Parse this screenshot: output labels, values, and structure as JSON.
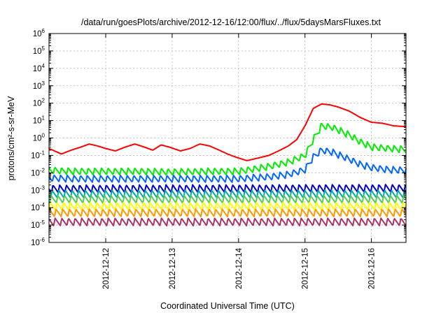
{
  "chart_data": {
    "type": "line",
    "title": "/data/run/goesPlots/archive/2012-12-16/12:00/flux/../flux/5daysMarsFluxes.txt",
    "xlabel": "Coordinated Universal Time (UTC)",
    "ylabel": "protons/cm²-s-sr-MeV",
    "yscale": "log",
    "ylim": [
      1e-06,
      1000000.0
    ],
    "y_ticks": [
      "10-6",
      "10-5",
      "10-4",
      "10-3",
      "10-2",
      "10-1",
      "100",
      "101",
      "102",
      "103",
      "104",
      "105",
      "106"
    ],
    "x_ticks": [
      "2012-12-12",
      "2012-12-13",
      "2012-12-14",
      "2012-12-15",
      "2012-12-16"
    ],
    "xlim": [
      "2012-12-11 03:30",
      "2012-12-16 12:30"
    ],
    "grid": true,
    "legend": "none",
    "series": [
      {
        "color": "#ff0000",
        "x": [
          "2012-12-11 03:30",
          "2012-12-11 08:00",
          "2012-12-11 11:30",
          "2012-12-11 15:00",
          "2012-12-11 18:00",
          "2012-12-11 21:00",
          "2012-12-12 00:00",
          "2012-12-12 03:30",
          "2012-12-12 07:00",
          "2012-12-12 10:30",
          "2012-12-12 14:00",
          "2012-12-12 17:00",
          "2012-12-12 20:00",
          "2012-12-12 23:00",
          "2012-12-13 03:00",
          "2012-12-13 06:30",
          "2012-12-13 10:00",
          "2012-12-13 13:30",
          "2012-12-13 17:00",
          "2012-12-13 20:00",
          "2012-12-13 23:00",
          "2012-12-14 03:00",
          "2012-12-14 07:00",
          "2012-12-14 11:00",
          "2012-12-14 15:00",
          "2012-12-14 18:00",
          "2012-12-14 21:00",
          "2012-12-15 00:00",
          "2012-12-15 03:00",
          "2012-12-15 06:00",
          "2012-12-15 09:00",
          "2012-12-15 12:00",
          "2012-12-15 16:00",
          "2012-12-15 20:00",
          "2012-12-16 00:00",
          "2012-12-16 04:00",
          "2012-12-16 08:00",
          "2012-12-16 12:30"
        ],
        "y": [
          0.25,
          0.12,
          0.2,
          0.3,
          0.45,
          0.35,
          0.25,
          0.18,
          0.3,
          0.45,
          0.3,
          0.2,
          0.4,
          0.3,
          0.18,
          0.25,
          0.45,
          0.35,
          0.2,
          0.12,
          0.08,
          0.05,
          0.07,
          0.1,
          0.2,
          0.35,
          0.8,
          5,
          50,
          90,
          80,
          60,
          35,
          15,
          8,
          7,
          5,
          4.5
        ]
      },
      {
        "color": "#00ee00",
        "x": [
          "2012-12-11 03:30",
          "2012-12-11 12:00",
          "2012-12-12 00:00",
          "2012-12-12 12:00",
          "2012-12-13 00:00",
          "2012-12-13 12:00",
          "2012-12-14 00:00",
          "2012-12-14 09:00",
          "2012-12-14 18:00",
          "2012-12-15 00:00",
          "2012-12-15 03:00",
          "2012-12-15 06:00",
          "2012-12-15 10:00",
          "2012-12-15 16:00",
          "2012-12-15 20:00",
          "2012-12-16 00:00",
          "2012-12-16 06:00",
          "2012-12-16 12:30"
        ],
        "y": [
          0.014,
          0.012,
          0.012,
          0.012,
          0.011,
          0.012,
          0.012,
          0.02,
          0.04,
          0.1,
          0.8,
          5,
          4,
          1.5,
          0.6,
          0.3,
          0.25,
          0.22
        ]
      },
      {
        "color": "#0066ff",
        "x": [
          "2012-12-11 03:30",
          "2012-12-11 12:00",
          "2012-12-12 00:00",
          "2012-12-12 12:00",
          "2012-12-13 00:00",
          "2012-12-13 12:00",
          "2012-12-14 00:00",
          "2012-12-14 12:00",
          "2012-12-14 18:00",
          "2012-12-15 00:00",
          "2012-12-15 03:00",
          "2012-12-15 06:00",
          "2012-12-15 10:00",
          "2012-12-15 16:00",
          "2012-12-15 20:00",
          "2012-12-16 00:00",
          "2012-12-16 06:00",
          "2012-12-16 12:30"
        ],
        "y": [
          0.005,
          0.0045,
          0.0045,
          0.0045,
          0.0045,
          0.0045,
          0.0045,
          0.006,
          0.008,
          0.015,
          0.08,
          0.2,
          0.15,
          0.06,
          0.03,
          0.02,
          0.015,
          0.014
        ]
      },
      {
        "color": "#0000cc",
        "x": [
          "2012-12-11 03:30",
          "2012-12-16 12:30"
        ],
        "y": [
          0.0012,
          0.0013
        ]
      },
      {
        "color": "#00aaaa",
        "x": [
          "2012-12-11 03:30",
          "2012-12-16 12:30"
        ],
        "y": [
          0.0006,
          0.0006
        ]
      },
      {
        "color": "#55cc55",
        "x": [
          "2012-12-11 03:30",
          "2012-12-16 12:30"
        ],
        "y": [
          0.0003,
          0.0003
        ]
      },
      {
        "color": "#ffff00",
        "x": [
          "2012-12-11 03:30",
          "2012-12-16 12:30"
        ],
        "y": [
          0.00012,
          0.00012
        ]
      },
      {
        "color": "#ff9900",
        "x": [
          "2012-12-11 03:30",
          "2012-12-16 12:30"
        ],
        "y": [
          5e-05,
          5e-05
        ]
      },
      {
        "color": "#aa3366",
        "x": [
          "2012-12-11 03:30",
          "2012-12-16 12:30"
        ],
        "y": [
          1.5e-05,
          1.5e-05
        ]
      }
    ]
  }
}
